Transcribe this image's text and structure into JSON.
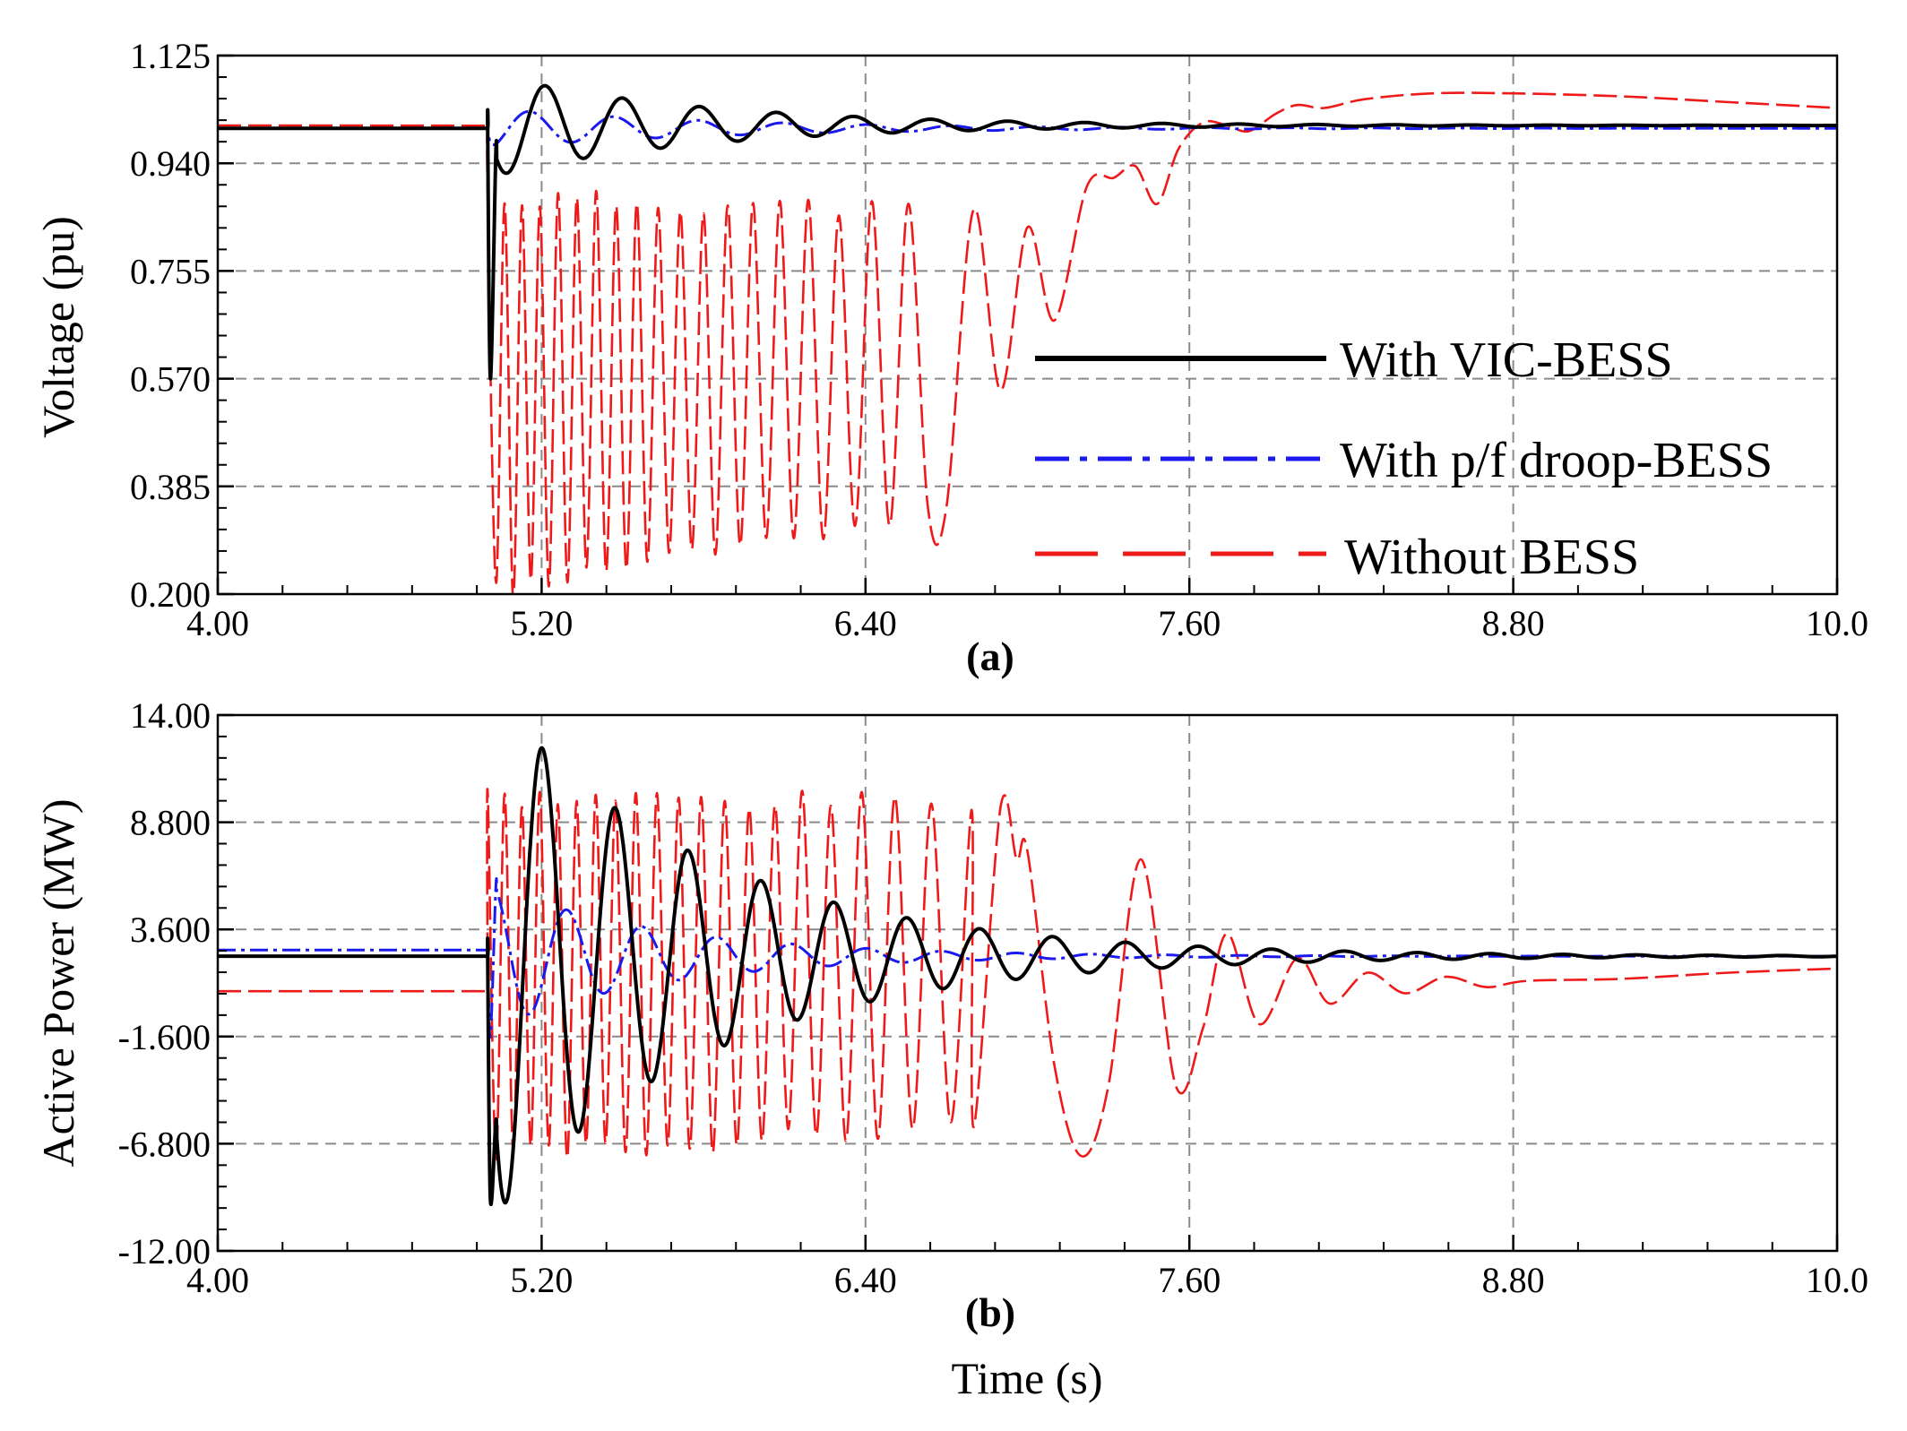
{
  "figure": {
    "xlabel": "Time (s)"
  },
  "legend": {
    "items": [
      {
        "label": "With VIC-BESS",
        "color": "#000000",
        "style": "solid"
      },
      {
        "label": "With p/f droop-BESS",
        "color": "#1a1aee",
        "style": "dashdot"
      },
      {
        "label": "Without BESS",
        "color": "#ee1a1a",
        "style": "dashed"
      }
    ]
  },
  "chart_data": [
    {
      "type": "line",
      "panel_label": "(a)",
      "ylabel": "Voltage (pu)",
      "xlim": [
        4.0,
        10.0
      ],
      "ylim": [
        0.2,
        1.125
      ],
      "x_ticks": [
        "4.00",
        "5.20",
        "6.40",
        "7.60",
        "8.80",
        "10.0"
      ],
      "x_tick_values": [
        4.0,
        5.2,
        6.4,
        7.6,
        8.8,
        10.0
      ],
      "y_ticks": [
        "0.200",
        "0.385",
        "0.570",
        "0.755",
        "0.940",
        "1.125"
      ],
      "y_tick_values": [
        0.2,
        0.385,
        0.57,
        0.755,
        0.94,
        1.125
      ],
      "grid": true,
      "series": [
        {
          "name": "Without BESS",
          "color": "#ee1a1a",
          "model": "osc",
          "pre": 1.005,
          "pre_slope": -0.0005,
          "t0": 5.0,
          "tend": 6.7,
          "env_start": [
            0.2,
            0.88
          ],
          "env_end": [
            0.35,
            0.86
          ],
          "freq_start": 16,
          "freq_end": 6,
          "recovery": [
            [
              6.7,
              0.35
            ],
            [
              6.8,
              0.86
            ],
            [
              6.9,
              0.55
            ],
            [
              7.0,
              0.83
            ],
            [
              7.1,
              0.67
            ],
            [
              7.22,
              0.9
            ],
            [
              7.32,
              0.915
            ],
            [
              7.4,
              0.935
            ],
            [
              7.48,
              0.87
            ],
            [
              7.56,
              0.965
            ],
            [
              7.65,
              1.01
            ],
            [
              7.74,
              1.005
            ],
            [
              7.82,
              0.995
            ],
            [
              7.92,
              1.025
            ],
            [
              8.0,
              1.04
            ],
            [
              8.1,
              1.035
            ],
            [
              8.25,
              1.05
            ],
            [
              8.5,
              1.06
            ],
            [
              8.8,
              1.06
            ],
            [
              9.2,
              1.055
            ],
            [
              9.6,
              1.045
            ],
            [
              10.0,
              1.035
            ]
          ]
        },
        {
          "name": "With p/f droop-BESS",
          "color": "#1a1aee",
          "model": "damped",
          "pre": 1.0,
          "t0": 5.0,
          "base": 1.0,
          "dip": 0.975,
          "amp": 0.035,
          "freq": 3.2,
          "decay": 1.2,
          "phase": -1.57
        },
        {
          "name": "With VIC-BESS",
          "color": "#000000",
          "model": "damped",
          "pre": 1.0,
          "t0": 5.0,
          "base": 1.005,
          "dip": 0.57,
          "amp": 0.09,
          "freq": 3.5,
          "decay": 1.3,
          "phase": 3.14
        }
      ]
    },
    {
      "type": "line",
      "panel_label": "(b)",
      "ylabel": "Active Power (MW)",
      "xlim": [
        4.0,
        10.0
      ],
      "ylim": [
        -12.0,
        14.0
      ],
      "x_ticks": [
        "4.00",
        "5.20",
        "6.40",
        "7.60",
        "8.80",
        "10.0"
      ],
      "x_tick_values": [
        4.0,
        5.2,
        6.4,
        7.6,
        8.8,
        10.0
      ],
      "y_ticks": [
        "-12.00",
        "-6.800",
        "-1.600",
        "3.600",
        "8.800",
        "14.00"
      ],
      "y_tick_values": [
        -12.0,
        -6.8,
        -1.6,
        3.6,
        8.8,
        14.0
      ],
      "grid": true,
      "series": [
        {
          "name": "Without BESS",
          "color": "#ee1a1a",
          "model": "osc",
          "pre": 0.6,
          "pre_slope": 0,
          "t0": 5.0,
          "tend": 6.8,
          "env_start": [
            -7.5,
            10.0
          ],
          "env_end": [
            -6.0,
            9.8
          ],
          "freq_start": 16,
          "freq_end": 6,
          "recovery": [
            [
              6.8,
              -6.0
            ],
            [
              6.9,
              9.5
            ],
            [
              6.96,
              7.0
            ],
            [
              7.0,
              7.4
            ],
            [
              7.1,
              -3.0
            ],
            [
              7.2,
              -7.4
            ],
            [
              7.3,
              -4.0
            ],
            [
              7.42,
              7.0
            ],
            [
              7.55,
              -4.0
            ],
            [
              7.65,
              -1.2
            ],
            [
              7.74,
              3.4
            ],
            [
              7.86,
              -1.0
            ],
            [
              8.0,
              2.2
            ],
            [
              8.12,
              0.0
            ],
            [
              8.26,
              1.5
            ],
            [
              8.4,
              0.5
            ],
            [
              8.55,
              1.3
            ],
            [
              8.7,
              0.8
            ],
            [
              8.85,
              1.1
            ],
            [
              9.2,
              1.2
            ],
            [
              9.6,
              1.5
            ],
            [
              10.0,
              1.7
            ]
          ]
        },
        {
          "name": "With p/f droop-BESS",
          "color": "#1a1aee",
          "model": "damped",
          "pre": 2.6,
          "t0": 5.0,
          "base": 2.3,
          "dip": -1.6,
          "amp": 3.6,
          "freq": 3.6,
          "decay": 1.6,
          "phase": 1.2
        },
        {
          "name": "With VIC-BESS",
          "color": "#000000",
          "model": "damped",
          "pre": 2.3,
          "t0": 5.0,
          "base": 2.3,
          "dip": -9.5,
          "amp": 13.0,
          "freq": 3.7,
          "decay": 1.25,
          "phase": 3.14
        }
      ]
    }
  ]
}
